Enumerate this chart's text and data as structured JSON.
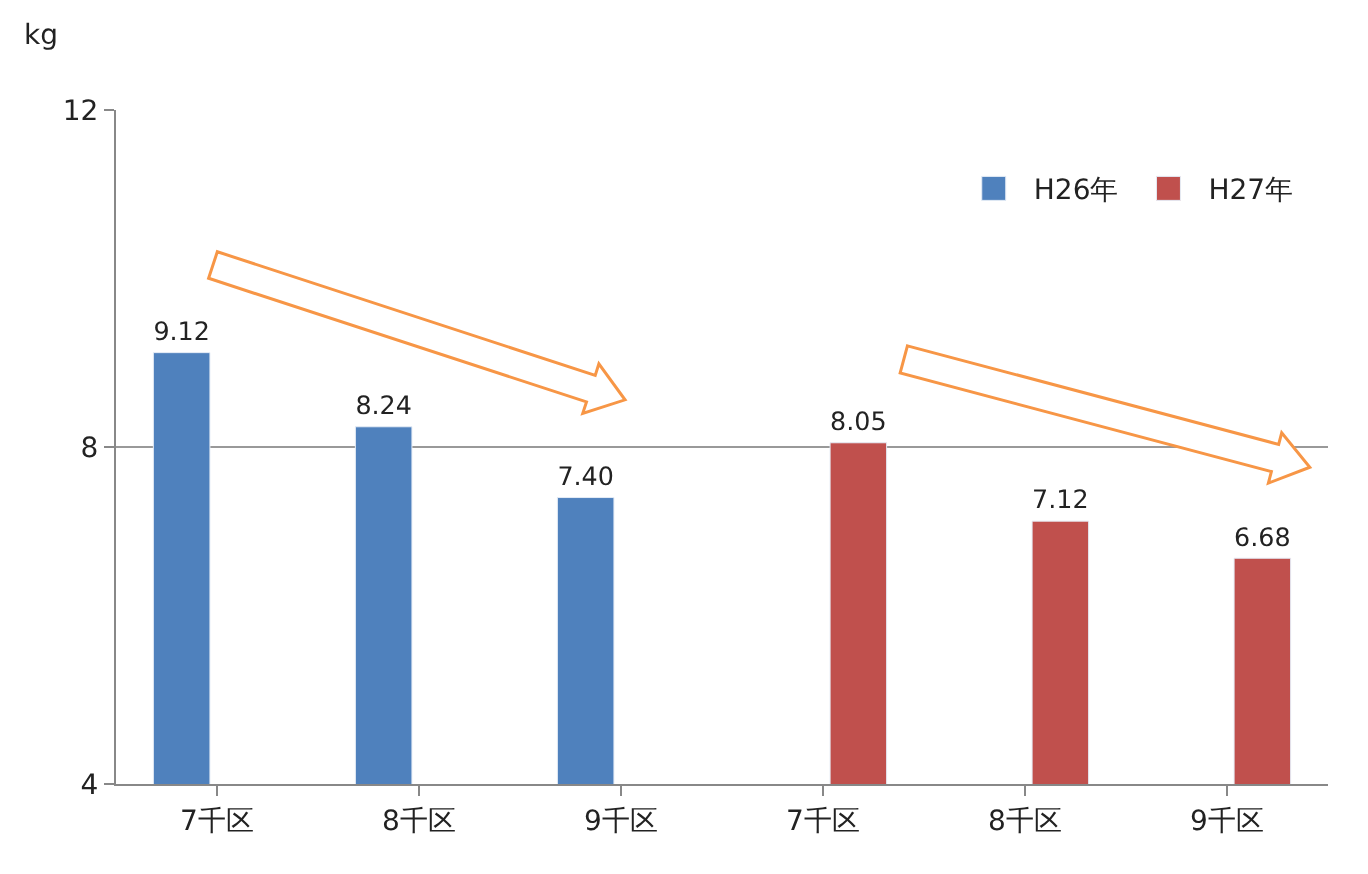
{
  "chart_data": {
    "type": "bar",
    "ylabel": "kg",
    "categories": [
      "7千区",
      "8千区",
      "9千区",
      "7千区",
      "8千区",
      "9千区"
    ],
    "series": [
      {
        "name": "H26年",
        "color": "#4f81bd",
        "values": [
          9.12,
          8.24,
          7.4,
          null,
          null,
          null
        ],
        "value_labels": [
          "9.12",
          "8.24",
          "7.40",
          null,
          null,
          null
        ]
      },
      {
        "name": "H27年",
        "color": "#c0504d",
        "values": [
          null,
          null,
          null,
          8.05,
          7.12,
          6.68
        ],
        "value_labels": [
          null,
          null,
          null,
          "8.05",
          "7.12",
          "6.68"
        ]
      }
    ],
    "ylim": [
      4,
      12
    ],
    "yticks": [
      4,
      8,
      12
    ],
    "grid": "y",
    "legend": "top right"
  }
}
